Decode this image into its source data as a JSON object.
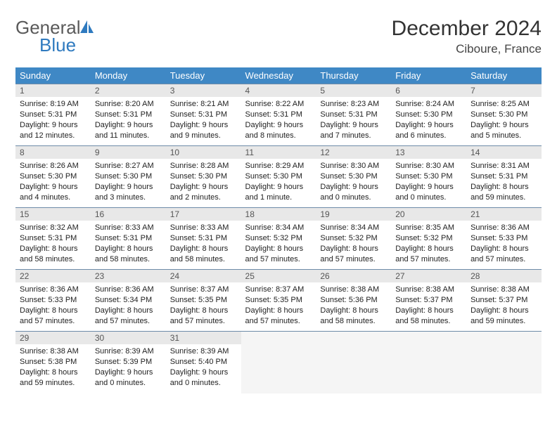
{
  "brand": {
    "part1": "General",
    "part2": "Blue"
  },
  "title": "December 2024",
  "location": "Ciboure, France",
  "colors": {
    "header_bg": "#3f88c5",
    "header_fg": "#ffffff",
    "daynum_bg": "#e8e8e8",
    "rule": "#6d8ba8",
    "brand_gray": "#5a5a5a",
    "brand_blue": "#2f7abf"
  },
  "weekdays": [
    "Sunday",
    "Monday",
    "Tuesday",
    "Wednesday",
    "Thursday",
    "Friday",
    "Saturday"
  ],
  "days": [
    {
      "n": 1,
      "sr": "8:19 AM",
      "ss": "5:31 PM",
      "dl": "9 hours and 12 minutes."
    },
    {
      "n": 2,
      "sr": "8:20 AM",
      "ss": "5:31 PM",
      "dl": "9 hours and 11 minutes."
    },
    {
      "n": 3,
      "sr": "8:21 AM",
      "ss": "5:31 PM",
      "dl": "9 hours and 9 minutes."
    },
    {
      "n": 4,
      "sr": "8:22 AM",
      "ss": "5:31 PM",
      "dl": "9 hours and 8 minutes."
    },
    {
      "n": 5,
      "sr": "8:23 AM",
      "ss": "5:31 PM",
      "dl": "9 hours and 7 minutes."
    },
    {
      "n": 6,
      "sr": "8:24 AM",
      "ss": "5:30 PM",
      "dl": "9 hours and 6 minutes."
    },
    {
      "n": 7,
      "sr": "8:25 AM",
      "ss": "5:30 PM",
      "dl": "9 hours and 5 minutes."
    },
    {
      "n": 8,
      "sr": "8:26 AM",
      "ss": "5:30 PM",
      "dl": "9 hours and 4 minutes."
    },
    {
      "n": 9,
      "sr": "8:27 AM",
      "ss": "5:30 PM",
      "dl": "9 hours and 3 minutes."
    },
    {
      "n": 10,
      "sr": "8:28 AM",
      "ss": "5:30 PM",
      "dl": "9 hours and 2 minutes."
    },
    {
      "n": 11,
      "sr": "8:29 AM",
      "ss": "5:30 PM",
      "dl": "9 hours and 1 minute."
    },
    {
      "n": 12,
      "sr": "8:30 AM",
      "ss": "5:30 PM",
      "dl": "9 hours and 0 minutes."
    },
    {
      "n": 13,
      "sr": "8:30 AM",
      "ss": "5:30 PM",
      "dl": "9 hours and 0 minutes."
    },
    {
      "n": 14,
      "sr": "8:31 AM",
      "ss": "5:31 PM",
      "dl": "8 hours and 59 minutes."
    },
    {
      "n": 15,
      "sr": "8:32 AM",
      "ss": "5:31 PM",
      "dl": "8 hours and 58 minutes."
    },
    {
      "n": 16,
      "sr": "8:33 AM",
      "ss": "5:31 PM",
      "dl": "8 hours and 58 minutes."
    },
    {
      "n": 17,
      "sr": "8:33 AM",
      "ss": "5:31 PM",
      "dl": "8 hours and 58 minutes."
    },
    {
      "n": 18,
      "sr": "8:34 AM",
      "ss": "5:32 PM",
      "dl": "8 hours and 57 minutes."
    },
    {
      "n": 19,
      "sr": "8:34 AM",
      "ss": "5:32 PM",
      "dl": "8 hours and 57 minutes."
    },
    {
      "n": 20,
      "sr": "8:35 AM",
      "ss": "5:32 PM",
      "dl": "8 hours and 57 minutes."
    },
    {
      "n": 21,
      "sr": "8:36 AM",
      "ss": "5:33 PM",
      "dl": "8 hours and 57 minutes."
    },
    {
      "n": 22,
      "sr": "8:36 AM",
      "ss": "5:33 PM",
      "dl": "8 hours and 57 minutes."
    },
    {
      "n": 23,
      "sr": "8:36 AM",
      "ss": "5:34 PM",
      "dl": "8 hours and 57 minutes."
    },
    {
      "n": 24,
      "sr": "8:37 AM",
      "ss": "5:35 PM",
      "dl": "8 hours and 57 minutes."
    },
    {
      "n": 25,
      "sr": "8:37 AM",
      "ss": "5:35 PM",
      "dl": "8 hours and 57 minutes."
    },
    {
      "n": 26,
      "sr": "8:38 AM",
      "ss": "5:36 PM",
      "dl": "8 hours and 58 minutes."
    },
    {
      "n": 27,
      "sr": "8:38 AM",
      "ss": "5:37 PM",
      "dl": "8 hours and 58 minutes."
    },
    {
      "n": 28,
      "sr": "8:38 AM",
      "ss": "5:37 PM",
      "dl": "8 hours and 59 minutes."
    },
    {
      "n": 29,
      "sr": "8:38 AM",
      "ss": "5:38 PM",
      "dl": "8 hours and 59 minutes."
    },
    {
      "n": 30,
      "sr": "8:39 AM",
      "ss": "5:39 PM",
      "dl": "9 hours and 0 minutes."
    },
    {
      "n": 31,
      "sr": "8:39 AM",
      "ss": "5:40 PM",
      "dl": "9 hours and 0 minutes."
    }
  ],
  "labels": {
    "sunrise": "Sunrise:",
    "sunset": "Sunset:",
    "daylight": "Daylight:"
  },
  "trailing_empty": 4
}
